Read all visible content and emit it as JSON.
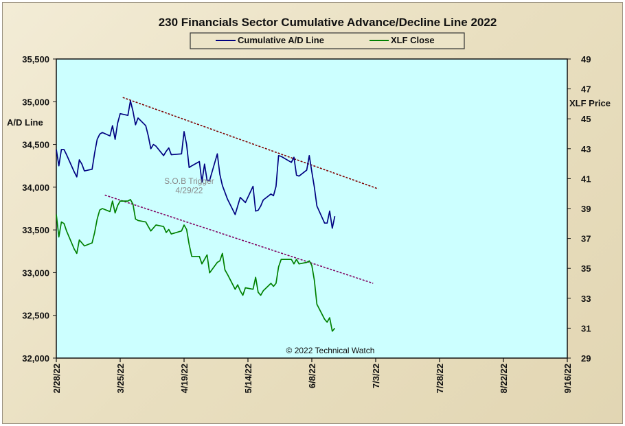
{
  "chart_data": {
    "type": "line",
    "title": "230 Financials  Sector Cumulative  Advance/Decline  Line 2022",
    "ylabel_left": "A/D Line",
    "ylabel_right": "XLF Price",
    "ylim_left": [
      32000,
      35500
    ],
    "ylim_right": [
      29,
      49
    ],
    "xlim": [
      "2022-02-28",
      "2022-09-16"
    ],
    "x_tick_labels": [
      "2/28/22",
      "3/25/22",
      "4/19/22",
      "5/14/22",
      "6/8/22",
      "7/3/22",
      "7/28/22",
      "8/22/22",
      "9/16/22"
    ],
    "y_left_tick_labels": [
      "35,500",
      "35,000",
      "34,500",
      "34,000",
      "33,500",
      "33,000",
      "32,500",
      "32,000"
    ],
    "y_right_tick_labels": [
      "49",
      "47",
      "45",
      "43",
      "41",
      "39",
      "37",
      "35",
      "33",
      "31",
      "29"
    ],
    "grid": false,
    "legend_position": "top-center",
    "series": [
      {
        "name": "Cumulative A/D Line",
        "axis": "left",
        "color": "#000080",
        "points": [
          [
            "2022-02-28",
            34440
          ],
          [
            "2022-03-01",
            34250
          ],
          [
            "2022-03-02",
            34440
          ],
          [
            "2022-03-03",
            34440
          ],
          [
            "2022-03-04",
            34380
          ],
          [
            "2022-03-07",
            34180
          ],
          [
            "2022-03-08",
            34120
          ],
          [
            "2022-03-09",
            34320
          ],
          [
            "2022-03-10",
            34270
          ],
          [
            "2022-03-11",
            34190
          ],
          [
            "2022-03-14",
            34210
          ],
          [
            "2022-03-15",
            34400
          ],
          [
            "2022-03-16",
            34560
          ],
          [
            "2022-03-17",
            34620
          ],
          [
            "2022-03-18",
            34640
          ],
          [
            "2022-03-21",
            34600
          ],
          [
            "2022-03-22",
            34720
          ],
          [
            "2022-03-23",
            34560
          ],
          [
            "2022-03-24",
            34750
          ],
          [
            "2022-03-25",
            34860
          ],
          [
            "2022-03-28",
            34840
          ],
          [
            "2022-03-29",
            35010
          ],
          [
            "2022-03-30",
            34890
          ],
          [
            "2022-03-31",
            34730
          ],
          [
            "2022-04-01",
            34810
          ],
          [
            "2022-04-04",
            34720
          ],
          [
            "2022-04-05",
            34600
          ],
          [
            "2022-04-06",
            34450
          ],
          [
            "2022-04-07",
            34500
          ],
          [
            "2022-04-08",
            34480
          ],
          [
            "2022-04-11",
            34370
          ],
          [
            "2022-04-12",
            34420
          ],
          [
            "2022-04-13",
            34460
          ],
          [
            "2022-04-14",
            34380
          ],
          [
            "2022-04-18",
            34390
          ],
          [
            "2022-04-19",
            34650
          ],
          [
            "2022-04-20",
            34500
          ],
          [
            "2022-04-21",
            34230
          ],
          [
            "2022-04-22",
            34250
          ],
          [
            "2022-04-25",
            34300
          ],
          [
            "2022-04-26",
            34060
          ],
          [
            "2022-04-27",
            34270
          ],
          [
            "2022-04-28",
            34080
          ],
          [
            "2022-04-29",
            34080
          ],
          [
            "2022-05-02",
            34390
          ],
          [
            "2022-05-03",
            34150
          ],
          [
            "2022-05-04",
            34020
          ],
          [
            "2022-05-05",
            33940
          ],
          [
            "2022-05-06",
            33860
          ],
          [
            "2022-05-09",
            33680
          ],
          [
            "2022-05-10",
            33780
          ],
          [
            "2022-05-11",
            33880
          ],
          [
            "2022-05-12",
            33850
          ],
          [
            "2022-05-13",
            33820
          ],
          [
            "2022-05-16",
            34010
          ],
          [
            "2022-05-17",
            33720
          ],
          [
            "2022-05-18",
            33730
          ],
          [
            "2022-05-19",
            33780
          ],
          [
            "2022-05-20",
            33850
          ],
          [
            "2022-05-23",
            33920
          ],
          [
            "2022-05-24",
            33900
          ],
          [
            "2022-05-25",
            34010
          ],
          [
            "2022-05-26",
            34370
          ],
          [
            "2022-05-27",
            34360
          ],
          [
            "2022-05-31",
            34290
          ],
          [
            "2022-06-01",
            34350
          ],
          [
            "2022-06-02",
            34140
          ],
          [
            "2022-06-03",
            34130
          ],
          [
            "2022-06-06",
            34200
          ],
          [
            "2022-06-07",
            34370
          ],
          [
            "2022-06-08",
            34180
          ],
          [
            "2022-06-09",
            34000
          ],
          [
            "2022-06-10",
            33780
          ],
          [
            "2022-06-13",
            33580
          ],
          [
            "2022-06-14",
            33580
          ],
          [
            "2022-06-15",
            33720
          ],
          [
            "2022-06-16",
            33520
          ],
          [
            "2022-06-17",
            33660
          ]
        ]
      },
      {
        "name": "XLF Close",
        "axis": "right",
        "color": "#008000",
        "points": [
          [
            "2022-02-28",
            38.6
          ],
          [
            "2022-03-01",
            37.1
          ],
          [
            "2022-03-02",
            38.1
          ],
          [
            "2022-03-03",
            38.0
          ],
          [
            "2022-03-04",
            37.5
          ],
          [
            "2022-03-07",
            36.3
          ],
          [
            "2022-03-08",
            36.0
          ],
          [
            "2022-03-09",
            36.9
          ],
          [
            "2022-03-10",
            36.7
          ],
          [
            "2022-03-11",
            36.5
          ],
          [
            "2022-03-14",
            36.7
          ],
          [
            "2022-03-15",
            37.4
          ],
          [
            "2022-03-16",
            38.3
          ],
          [
            "2022-03-17",
            38.9
          ],
          [
            "2022-03-18",
            39.0
          ],
          [
            "2022-03-21",
            38.8
          ],
          [
            "2022-03-22",
            39.5
          ],
          [
            "2022-03-23",
            38.7
          ],
          [
            "2022-03-24",
            39.2
          ],
          [
            "2022-03-25",
            39.5
          ],
          [
            "2022-03-28",
            39.5
          ],
          [
            "2022-03-29",
            39.6
          ],
          [
            "2022-03-30",
            39.3
          ],
          [
            "2022-03-31",
            38.3
          ],
          [
            "2022-04-01",
            38.2
          ],
          [
            "2022-04-04",
            38.1
          ],
          [
            "2022-04-05",
            37.8
          ],
          [
            "2022-04-06",
            37.5
          ],
          [
            "2022-04-07",
            37.7
          ],
          [
            "2022-04-08",
            37.9
          ],
          [
            "2022-04-11",
            37.8
          ],
          [
            "2022-04-12",
            37.4
          ],
          [
            "2022-04-13",
            37.6
          ],
          [
            "2022-04-14",
            37.3
          ],
          [
            "2022-04-18",
            37.5
          ],
          [
            "2022-04-19",
            37.9
          ],
          [
            "2022-04-20",
            37.6
          ],
          [
            "2022-04-21",
            36.6
          ],
          [
            "2022-04-22",
            35.8
          ],
          [
            "2022-04-25",
            35.8
          ],
          [
            "2022-04-26",
            35.3
          ],
          [
            "2022-04-27",
            35.6
          ],
          [
            "2022-04-28",
            35.9
          ],
          [
            "2022-04-29",
            34.7
          ],
          [
            "2022-05-02",
            35.4
          ],
          [
            "2022-05-03",
            35.5
          ],
          [
            "2022-05-04",
            36.0
          ],
          [
            "2022-05-05",
            34.9
          ],
          [
            "2022-05-06",
            34.6
          ],
          [
            "2022-05-09",
            33.6
          ],
          [
            "2022-05-10",
            33.9
          ],
          [
            "2022-05-11",
            33.5
          ],
          [
            "2022-05-12",
            33.2
          ],
          [
            "2022-05-13",
            33.7
          ],
          [
            "2022-05-16",
            33.6
          ],
          [
            "2022-05-17",
            34.4
          ],
          [
            "2022-05-18",
            33.4
          ],
          [
            "2022-05-19",
            33.2
          ],
          [
            "2022-05-20",
            33.5
          ],
          [
            "2022-05-23",
            34.0
          ],
          [
            "2022-05-24",
            33.8
          ],
          [
            "2022-05-25",
            34.0
          ],
          [
            "2022-05-26",
            35.1
          ],
          [
            "2022-05-27",
            35.6
          ],
          [
            "2022-05-31",
            35.6
          ],
          [
            "2022-06-01",
            35.3
          ],
          [
            "2022-06-02",
            35.6
          ],
          [
            "2022-06-03",
            35.3
          ],
          [
            "2022-06-06",
            35.4
          ],
          [
            "2022-06-07",
            35.5
          ],
          [
            "2022-06-08",
            35.2
          ],
          [
            "2022-06-09",
            34.2
          ],
          [
            "2022-06-10",
            32.6
          ],
          [
            "2022-06-13",
            31.6
          ],
          [
            "2022-06-14",
            31.4
          ],
          [
            "2022-06-15",
            31.7
          ],
          [
            "2022-06-16",
            30.8
          ],
          [
            "2022-06-17",
            31.0
          ]
        ]
      }
    ],
    "trendlines": [
      {
        "axis": "left",
        "color": "#800000",
        "from": [
          "2022-03-26",
          35050
        ],
        "to": [
          "2022-07-04",
          33980
        ]
      },
      {
        "axis": "right",
        "color": "#800060",
        "from": [
          "2022-03-19",
          39.9
        ],
        "to": [
          "2022-07-02",
          34.0
        ]
      }
    ],
    "annotations": [
      {
        "text": "S.O.B  Trigger",
        "at": [
          "2022-04-21",
          34040
        ],
        "axis": "left"
      },
      {
        "text": "4/29/22",
        "at": [
          "2022-04-21",
          33930
        ],
        "axis": "left"
      }
    ],
    "copyright": "© 2022 Technical Watch"
  }
}
